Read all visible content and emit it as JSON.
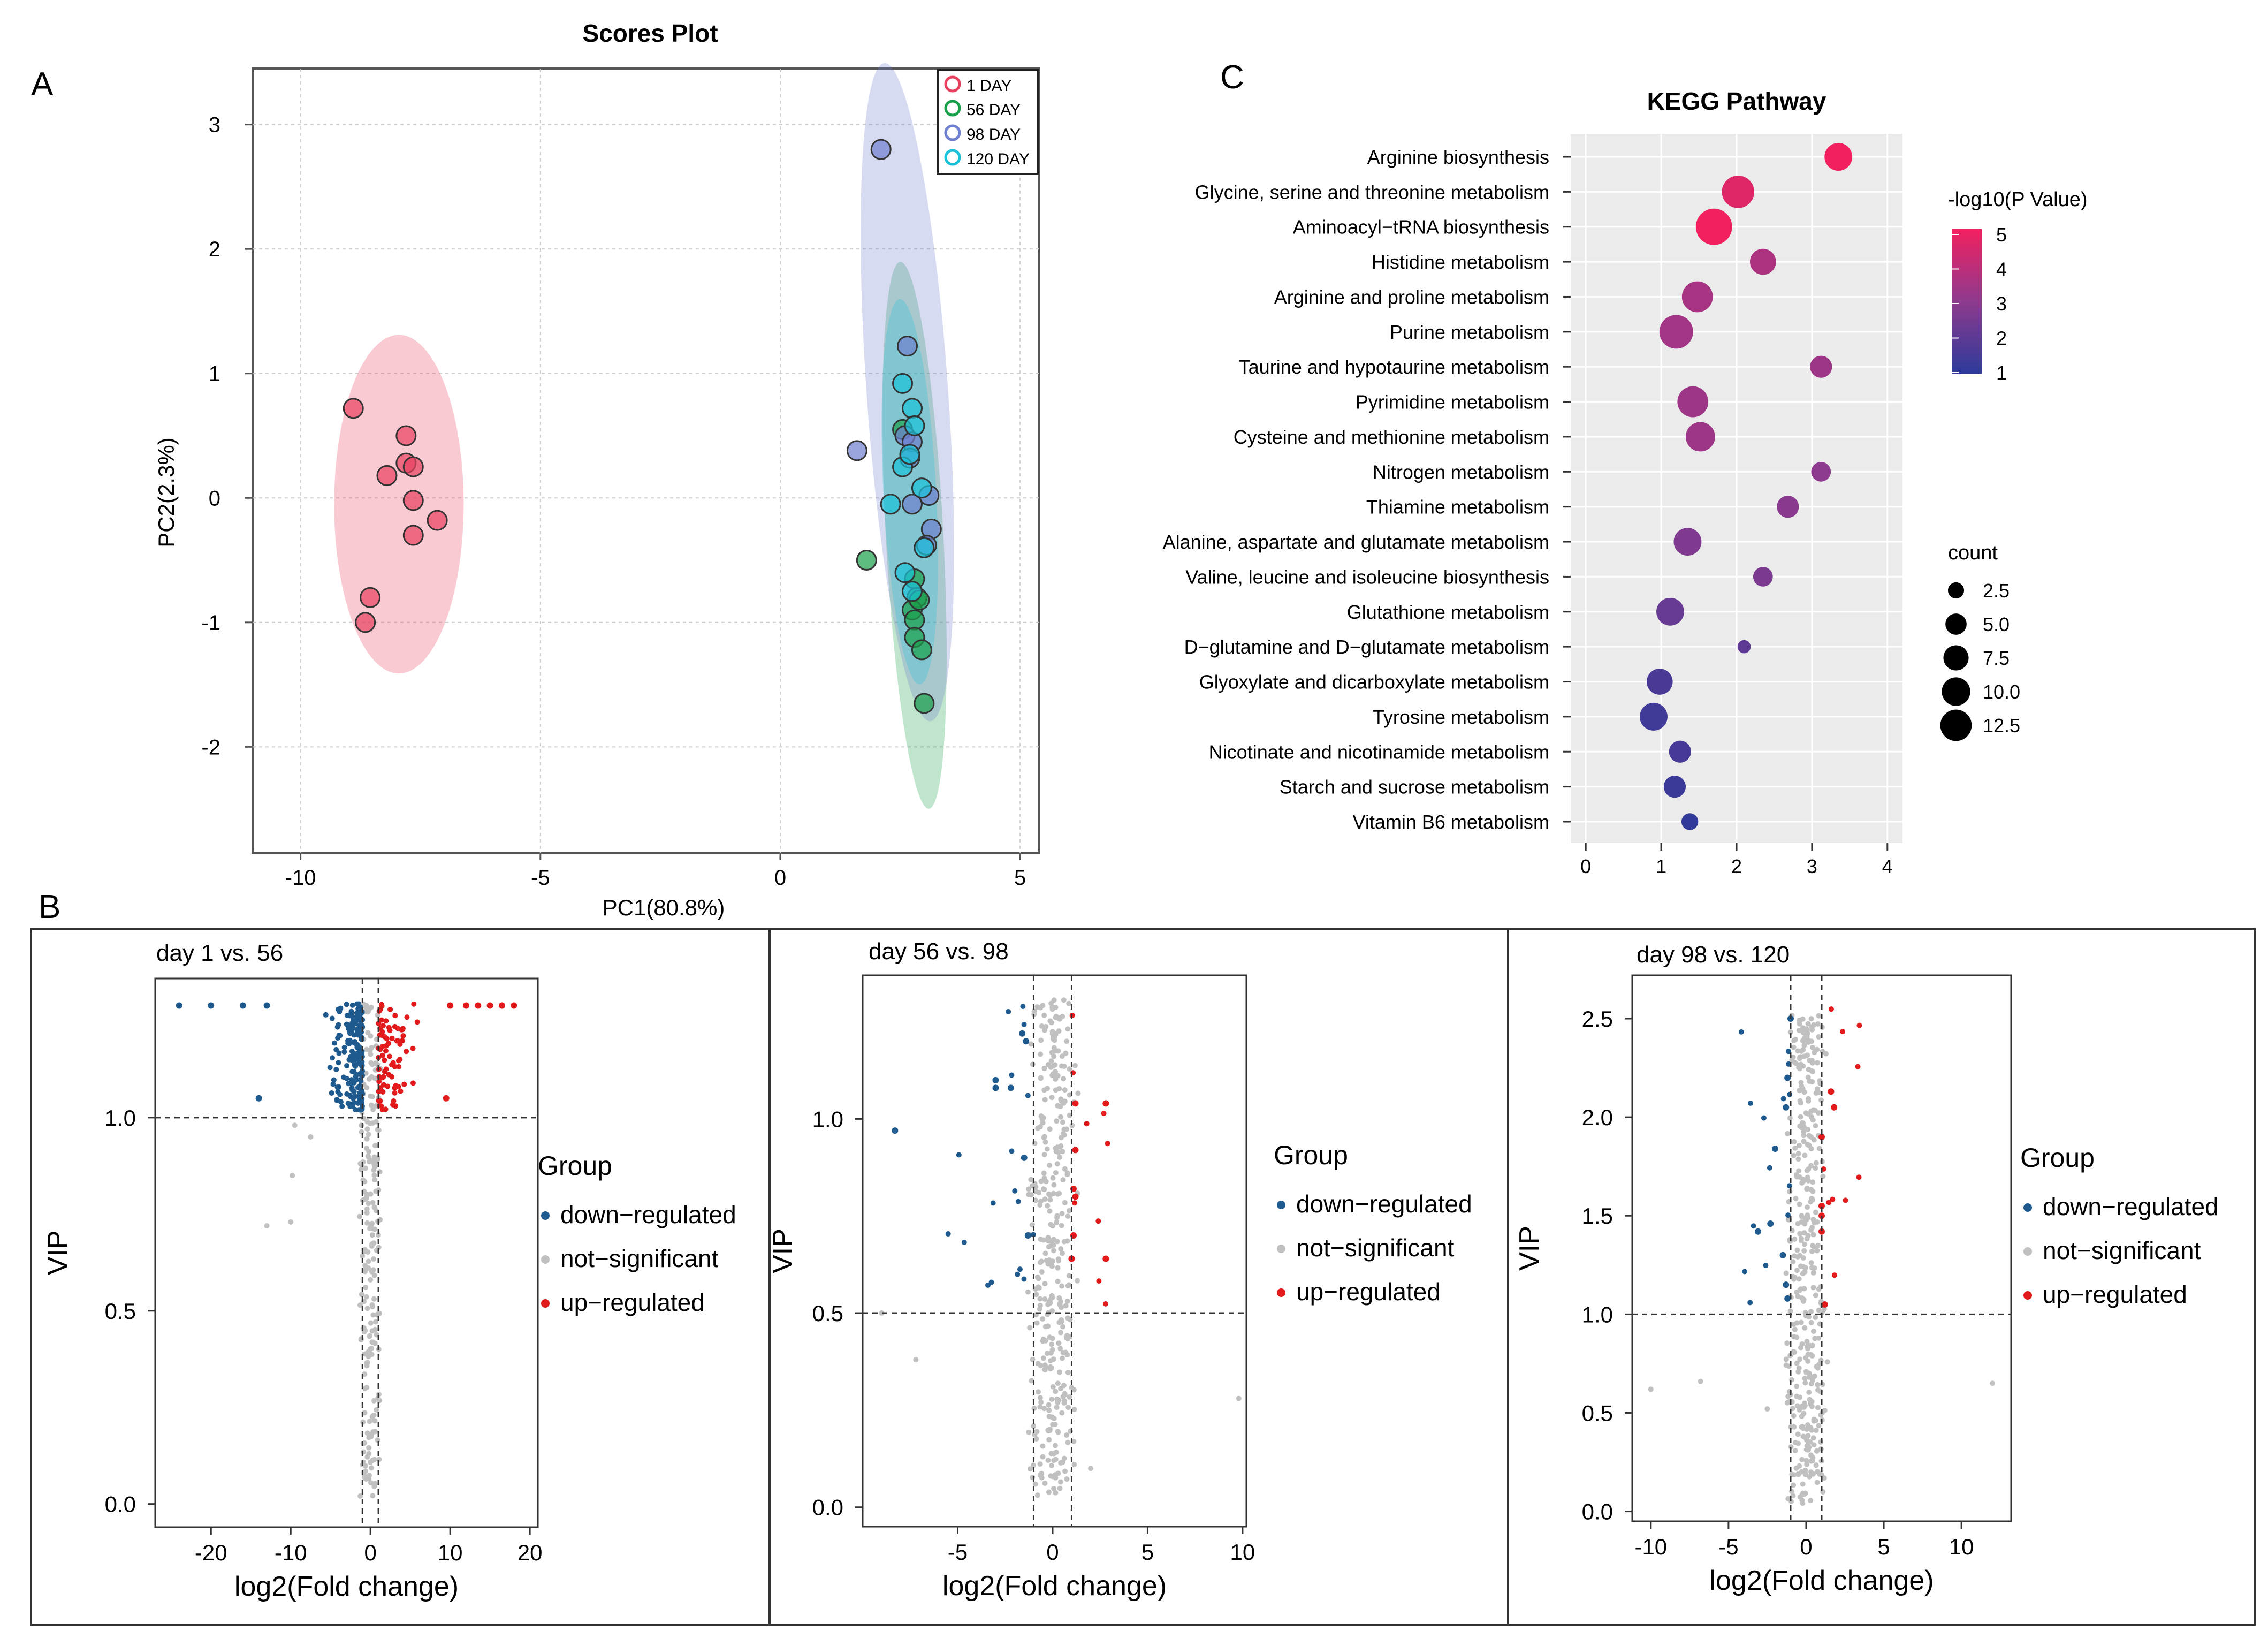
{
  "figure": {
    "panel_labels": {
      "a": "A",
      "b": "B",
      "c": "C"
    },
    "colors": {
      "day1": "#e8415f",
      "day56": "#1aa04a",
      "day98": "#6f7fcf",
      "day120": "#19c2d8",
      "down": "#1f5a8f",
      "ns": "#c0c0c0",
      "up": "#e31a1c",
      "grad_high": "#f2205f",
      "grad_mid": "#8e3a8e",
      "grad_low": "#2d3a9a"
    }
  },
  "chart_data": [
    {
      "id": "scores",
      "type": "scatter",
      "title": "Scores Plot",
      "xlabel": "PC1(80.8%)",
      "ylabel": "PC2(2.3%)",
      "xlim": [
        -11,
        5.4
      ],
      "ylim": [
        -2.85,
        3.45
      ],
      "xticks": [
        -10,
        -5,
        0,
        5
      ],
      "yticks": [
        -2,
        -1,
        0,
        1,
        2,
        3
      ],
      "grid": true,
      "legend_position": "top-right",
      "series": [
        {
          "name": "1 DAY",
          "color_key": "day1",
          "points": [
            [
              -8.9,
              0.72
            ],
            [
              -7.8,
              0.5
            ],
            [
              -7.8,
              0.28
            ],
            [
              -7.65,
              0.25
            ],
            [
              -8.2,
              0.18
            ],
            [
              -7.65,
              -0.02
            ],
            [
              -7.15,
              -0.18
            ],
            [
              -7.65,
              -0.3
            ],
            [
              -8.55,
              -0.8
            ],
            [
              -8.65,
              -1.0
            ]
          ],
          "ellipse": {
            "cx": -7.95,
            "cy": -0.05,
            "rx": 1.35,
            "ry": 1.36,
            "angle": 0
          }
        },
        {
          "name": "56 DAY",
          "color_key": "day56",
          "points": [
            [
              1.8,
              -0.5
            ],
            [
              2.55,
              0.55
            ],
            [
              2.8,
              -0.65
            ],
            [
              2.85,
              -0.8
            ],
            [
              2.75,
              -0.9
            ],
            [
              2.8,
              -0.98
            ],
            [
              2.8,
              -1.12
            ],
            [
              2.95,
              -1.22
            ],
            [
              3.0,
              -1.65
            ],
            [
              2.9,
              -0.82
            ]
          ],
          "ellipse": {
            "cx": 2.8,
            "cy": -0.3,
            "rx": 0.6,
            "ry": 2.2,
            "angle": -3
          }
        },
        {
          "name": "98 DAY",
          "color_key": "day98",
          "points": [
            [
              2.1,
              2.8
            ],
            [
              2.65,
              1.22
            ],
            [
              1.6,
              0.38
            ],
            [
              2.6,
              0.5
            ],
            [
              2.75,
              0.45
            ],
            [
              2.7,
              0.32
            ],
            [
              3.1,
              0.02
            ],
            [
              2.75,
              -0.05
            ],
            [
              3.15,
              -0.25
            ],
            [
              3.05,
              -0.38
            ]
          ],
          "ellipse": {
            "cx": 2.65,
            "cy": 0.85,
            "rx": 0.85,
            "ry": 2.65,
            "angle": -4
          }
        },
        {
          "name": "120 DAY",
          "color_key": "day120",
          "points": [
            [
              2.55,
              0.92
            ],
            [
              2.75,
              0.72
            ],
            [
              2.8,
              0.58
            ],
            [
              2.55,
              0.25
            ],
            [
              2.7,
              0.35
            ],
            [
              2.95,
              0.08
            ],
            [
              2.3,
              -0.05
            ],
            [
              2.6,
              -0.6
            ],
            [
              3.0,
              -0.4
            ],
            [
              2.75,
              -0.75
            ]
          ],
          "ellipse": {
            "cx": 2.7,
            "cy": 0.05,
            "rx": 0.55,
            "ry": 1.55,
            "angle": -3
          }
        }
      ]
    },
    {
      "id": "kegg",
      "type": "scatter",
      "title": "KEGG Pathway",
      "xlim": [
        -0.2,
        4.2
      ],
      "xticks": [
        0,
        1,
        2,
        3,
        4
      ],
      "color_label": "-log10(P Value)",
      "color_ticks": [
        5,
        4,
        3,
        2,
        1
      ],
      "size_label": "count",
      "size_ticks": [
        "2.5",
        "5.0",
        "7.5",
        "10.0",
        "12.5"
      ],
      "size_values": [
        2.5,
        5.0,
        7.5,
        10.0,
        12.5
      ],
      "pathways": [
        {
          "name": "Arginine biosynthesis",
          "x": 3.35,
          "count": 7,
          "neglogp": 5.0
        },
        {
          "name": "Glycine, serine and threonine metabolism",
          "x": 2.02,
          "count": 10,
          "neglogp": 4.6
        },
        {
          "name": "Aminoacyl−tRNA biosynthesis",
          "x": 1.7,
          "count": 13,
          "neglogp": 5.0
        },
        {
          "name": "Histidine metabolism",
          "x": 2.35,
          "count": 6,
          "neglogp": 3.6
        },
        {
          "name": "Arginine and proline metabolism",
          "x": 1.48,
          "count": 9,
          "neglogp": 3.5
        },
        {
          "name": "Purine metabolism",
          "x": 1.2,
          "count": 11,
          "neglogp": 3.4
        },
        {
          "name": "Taurine and hypotaurine metabolism",
          "x": 3.12,
          "count": 4,
          "neglogp": 3.3
        },
        {
          "name": "Pyrimidine metabolism",
          "x": 1.42,
          "count": 9,
          "neglogp": 3.3
        },
        {
          "name": "Cysteine and methionine metabolism",
          "x": 1.52,
          "count": 8,
          "neglogp": 3.3
        },
        {
          "name": "Nitrogen metabolism",
          "x": 3.12,
          "count": 3,
          "neglogp": 3.0
        },
        {
          "name": "Thiamine metabolism",
          "x": 2.68,
          "count": 4,
          "neglogp": 2.9
        },
        {
          "name": "Alanine, aspartate and glutamate metabolism",
          "x": 1.35,
          "count": 7,
          "neglogp": 2.7
        },
        {
          "name": "Valine, leucine and isoleucine biosynthesis",
          "x": 2.35,
          "count": 3,
          "neglogp": 2.6
        },
        {
          "name": "Glutathione metabolism",
          "x": 1.12,
          "count": 7,
          "neglogp": 2.2
        },
        {
          "name": "D−glutamine and D−glutamate metabolism",
          "x": 2.1,
          "count": 1,
          "neglogp": 2.0
        },
        {
          "name": "Glyoxylate and dicarboxylate metabolism",
          "x": 0.98,
          "count": 6,
          "neglogp": 1.6
        },
        {
          "name": "Tyrosine metabolism",
          "x": 0.9,
          "count": 7,
          "neglogp": 1.4
        },
        {
          "name": "Nicotinate and nicotinamide metabolism",
          "x": 1.25,
          "count": 4,
          "neglogp": 1.5
        },
        {
          "name": "Starch and sucrose metabolism",
          "x": 1.18,
          "count": 4,
          "neglogp": 1.3
        },
        {
          "name": "Vitamin B6 metabolism",
          "x": 1.38,
          "count": 2,
          "neglogp": 1.1
        }
      ]
    },
    {
      "id": "volcano1",
      "type": "scatter",
      "title": "day 1 vs. 56",
      "xlabel": "log2(Fold change)",
      "ylabel": "VIP",
      "xlim": [
        -27,
        21
      ],
      "ylim": [
        -0.06,
        1.36
      ],
      "xticks": [
        -20,
        -10,
        0,
        10,
        20
      ],
      "yticks": [
        "0.0",
        "0.5",
        "1.0"
      ],
      "ytick_values": [
        0,
        0.5,
        1.0
      ],
      "vip_threshold": 1.0,
      "fc_thresholds": [
        -1,
        1
      ],
      "legend_title": "Group",
      "legend_items": [
        "down−regulated",
        "not−significant",
        "up−regulated"
      ],
      "groups": {
        "down_count": 190,
        "up_count": 80,
        "ns_count": 210
      },
      "outliers": {
        "down": [
          [
            -24,
            1.29
          ],
          [
            -20,
            1.29
          ],
          [
            -16,
            1.29
          ],
          [
            -14,
            1.05
          ],
          [
            -13,
            1.29
          ]
        ],
        "up": [
          [
            10,
            1.29
          ],
          [
            12,
            1.29
          ],
          [
            13.5,
            1.29
          ],
          [
            15,
            1.29
          ],
          [
            16.5,
            1.29
          ],
          [
            18,
            1.29
          ],
          [
            9.5,
            1.05
          ]
        ],
        "ns": [
          [
            -10,
            0.73
          ],
          [
            -13,
            0.72
          ],
          [
            -9.8,
            0.85
          ],
          [
            -7.5,
            0.95
          ],
          [
            -9.5,
            0.98
          ]
        ]
      }
    },
    {
      "id": "volcano2",
      "type": "scatter",
      "title": "day 56 vs. 98",
      "xlabel": "log2(Fold change)",
      "ylabel": "VIP",
      "xlim": [
        -10,
        10.2
      ],
      "ylim": [
        -0.05,
        1.37
      ],
      "xticks": [
        -5,
        0,
        5,
        10
      ],
      "yticks": [
        "0.0",
        "0.5",
        "1.0"
      ],
      "ytick_values": [
        0,
        0.5,
        1.0
      ],
      "vip_threshold": 0.5,
      "fc_thresholds": [
        -1,
        1
      ],
      "legend_title": "Group",
      "legend_items": [
        "down−regulated",
        "not−significant",
        "up−regulated"
      ],
      "groups": {
        "down_count": 18,
        "up_count": 9,
        "ns_count": 360
      },
      "outliers": {
        "down": [
          [
            -8.3,
            0.97
          ],
          [
            -3.0,
            1.1
          ],
          [
            -3.0,
            1.08
          ],
          [
            -1.6,
            1.22
          ],
          [
            -1.4,
            1.2
          ],
          [
            -2.2,
            1.08
          ],
          [
            -1.5,
            0.9
          ],
          [
            -1.3,
            0.7
          ]
        ],
        "up": [
          [
            2.8,
            1.04
          ],
          [
            1.2,
            1.04
          ],
          [
            1.1,
            0.82
          ],
          [
            1.2,
            0.8
          ],
          [
            1.1,
            0.7
          ],
          [
            2.8,
            0.64
          ],
          [
            1.0,
            0.64
          ],
          [
            1.2,
            0.92
          ]
        ],
        "ns": [
          [
            9.8,
            0.28
          ],
          [
            -7.2,
            0.38
          ],
          [
            2.0,
            0.1
          ],
          [
            -9.0,
            0.5
          ]
        ]
      }
    },
    {
      "id": "volcano3",
      "type": "scatter",
      "title": "day 98 vs. 120",
      "xlabel": "log2(Fold change)",
      "ylabel": "VIP",
      "xlim": [
        -11.2,
        13.2
      ],
      "ylim": [
        -0.05,
        2.72
      ],
      "xticks": [
        -10,
        -5,
        0,
        5,
        10
      ],
      "yticks": [
        "0.0",
        "0.5",
        "1.0",
        "1.5",
        "2.0",
        "2.5"
      ],
      "ytick_values": [
        0,
        0.5,
        1.0,
        1.5,
        2.0,
        2.5
      ],
      "vip_threshold": 1.0,
      "fc_thresholds": [
        -1,
        1
      ],
      "legend_title": "Group",
      "legend_items": [
        "down−regulated",
        "not−significant",
        "up−regulated"
      ],
      "groups": {
        "down_count": 14,
        "up_count": 10,
        "ns_count": 400
      },
      "outliers": {
        "down": [
          [
            -1.0,
            2.5
          ],
          [
            -1.2,
            2.2
          ],
          [
            -1.3,
            2.05
          ],
          [
            -2.0,
            1.84
          ],
          [
            -3.1,
            1.42
          ],
          [
            -2.3,
            1.46
          ],
          [
            -1.5,
            1.3
          ],
          [
            -1.3,
            1.15
          ],
          [
            -1.2,
            1.08
          ]
        ],
        "up": [
          [
            1.6,
            2.13
          ],
          [
            1.8,
            2.05
          ],
          [
            1.0,
            1.9
          ],
          [
            1.0,
            1.55
          ],
          [
            1.0,
            1.5
          ],
          [
            1.0,
            1.42
          ],
          [
            1.2,
            1.05
          ]
        ],
        "ns": [
          [
            -10,
            0.62
          ],
          [
            -6.8,
            0.66
          ],
          [
            -2.5,
            0.52
          ],
          [
            12,
            0.65
          ]
        ]
      }
    }
  ]
}
